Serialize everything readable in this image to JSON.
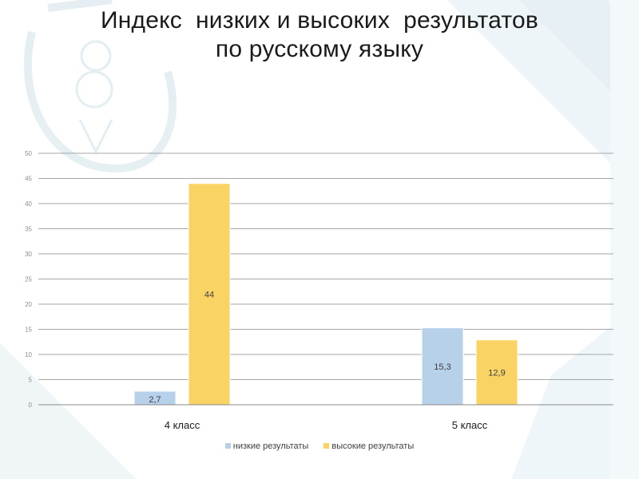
{
  "title": [
    "Индекс  низких и высоких  результатов",
    "по русскому языку"
  ],
  "colors": {
    "low": "#b8d1ea",
    "high": "#fad365",
    "grid": "#8a8a8a",
    "axis_text": "#595959"
  },
  "chart_data": {
    "type": "bar",
    "categories": [
      "4 класс",
      "5 класс"
    ],
    "series": [
      {
        "name": "низкие результаты",
        "values": [
          2.7,
          15.3
        ],
        "labels": [
          "2,7",
          "15,3"
        ],
        "color": "#b8d1ea"
      },
      {
        "name": "высокие результаты",
        "values": [
          44,
          12.9
        ],
        "labels": [
          "44",
          "12,9"
        ],
        "color": "#fad365"
      }
    ],
    "yticks": [
      0,
      5,
      10,
      15,
      20,
      25,
      30,
      35,
      40,
      45,
      50
    ],
    "ylim": [
      0,
      50
    ],
    "grid": true,
    "legend_position": "bottom"
  }
}
